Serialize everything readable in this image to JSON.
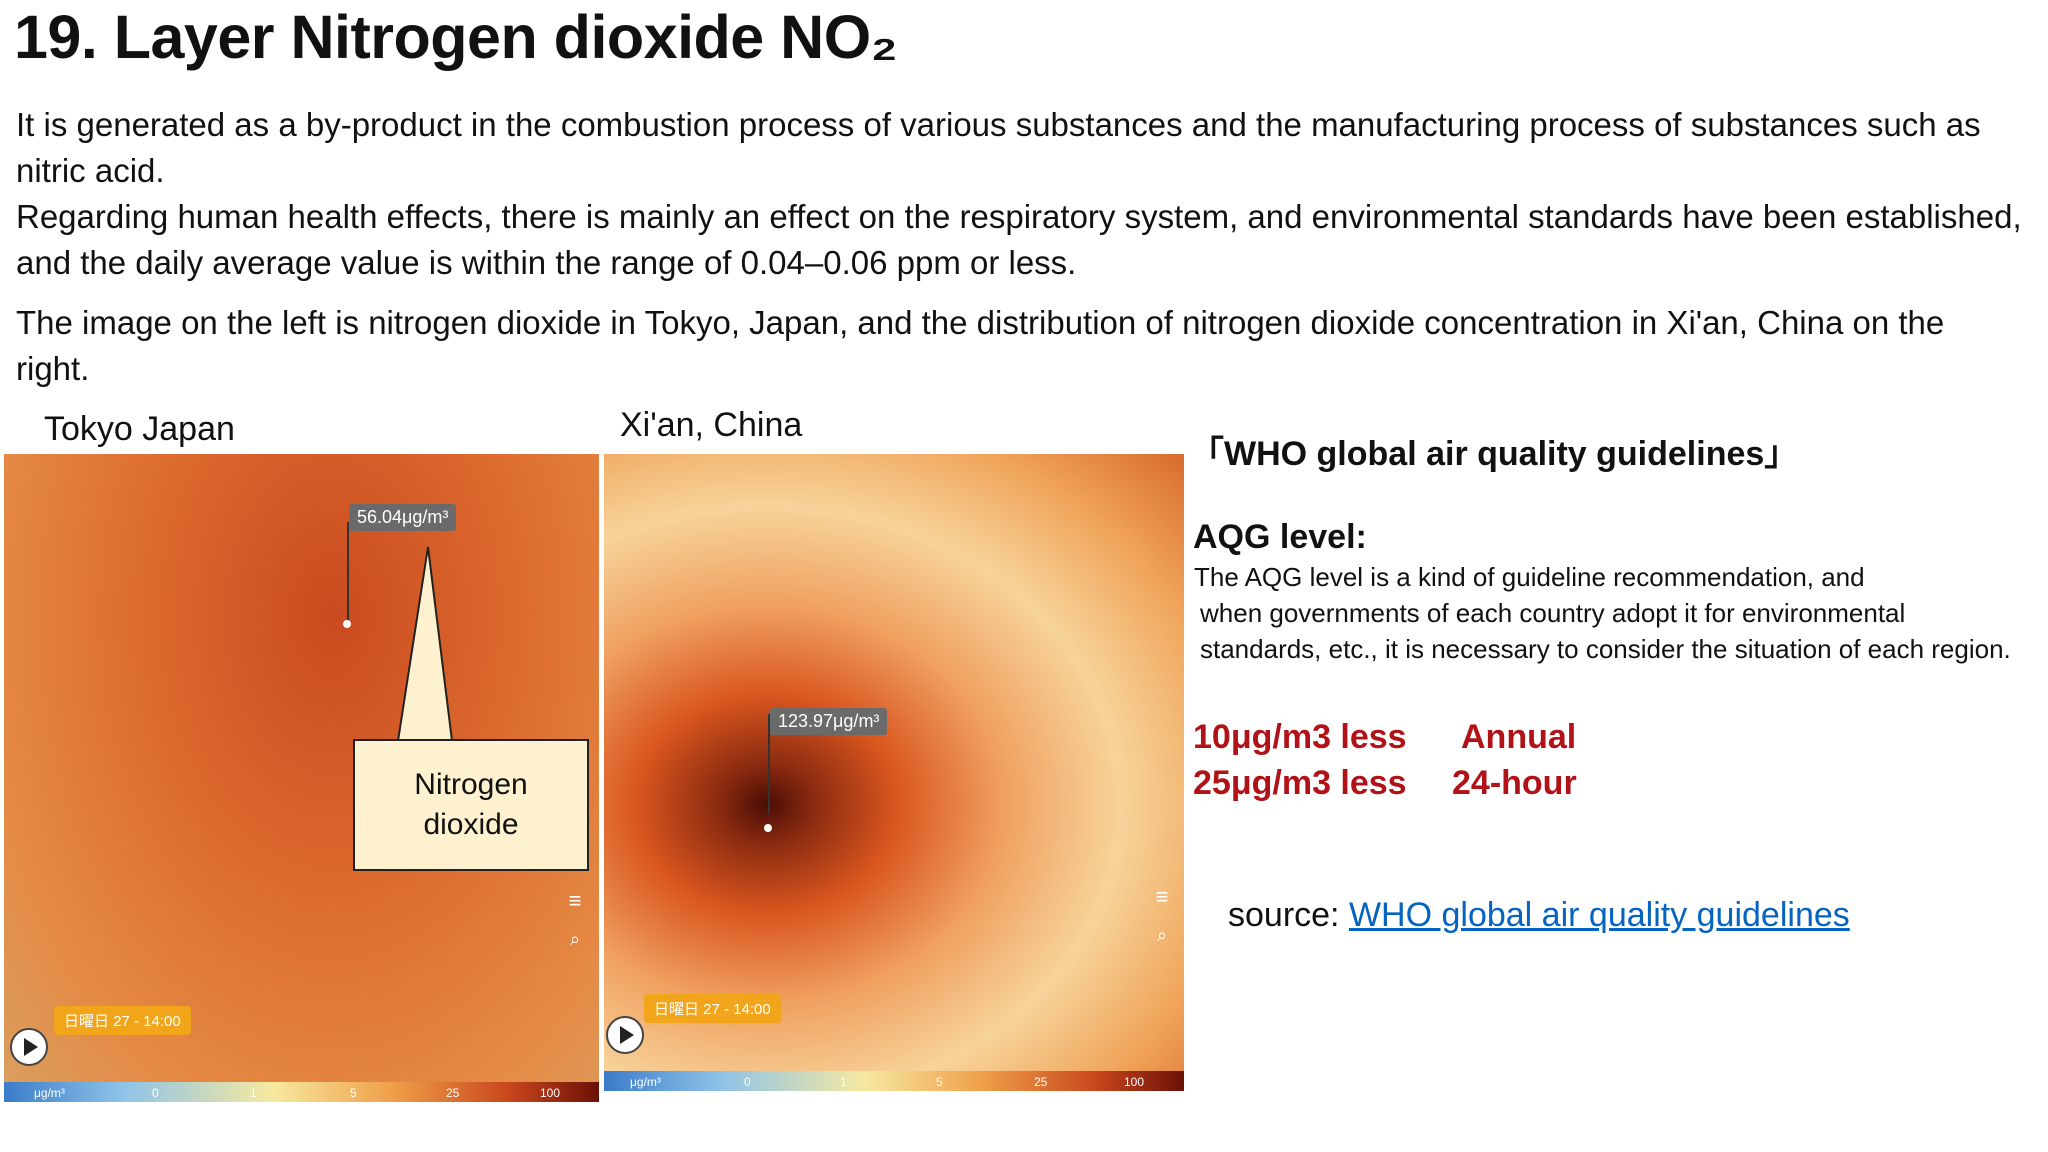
{
  "slide": {
    "title": "19. Layer Nitrogen dioxide  NO₂",
    "paragraph1": " It is generated as a by-product in the combustion process of various substances and the manufacturing process of substances such as nitric acid.",
    "paragraph2": "Regarding human health effects, there is mainly an effect on the respiratory system, and environmental standards have been established, and the daily average value is within the range of 0.04–0.06 ppm or less.",
    "paragraph3": "The image on the left is nitrogen dioxide in Tokyo, Japan, and the distribution of nitrogen dioxide concentration in Xi'an, China on the right."
  },
  "maps": {
    "tokyo": {
      "label": "Tokyo Japan",
      "reading": "56.04μg/m³",
      "date": "日曜日 27 - 14:00",
      "unit": "μg/m³",
      "scale": [
        "0",
        "1",
        "5",
        "25",
        "100"
      ]
    },
    "xian": {
      "label": "Xi'an, China",
      "reading": "123.97μg/m³",
      "date": "日曜日 27 - 14:00",
      "unit": "μg/m³",
      "scale": [
        "0",
        "1",
        "5",
        "25",
        "100"
      ]
    },
    "colors": {
      "low": "#3a7cc9",
      "mid": "#f6e9a0",
      "high": "#c8461c",
      "max": "#6b1008"
    }
  },
  "callout": {
    "text": "Nitrogen dioxide"
  },
  "who": {
    "heading": "「WHO global air quality guidelines」",
    "aqg_heading": "AQG level:",
    "aqg_lines": [
      "The AQG level is a kind of guideline recommendation, and",
      "when governments of each country adopt it for environmental",
      "standards, etc., it is necessary to consider the situation of each region."
    ],
    "guidelines": [
      {
        "value": "10μg/m3 less",
        "period": "Annual"
      },
      {
        "value": "25μg/m3 less",
        "period": "24-hour"
      }
    ],
    "accent_color": "#b01217",
    "source_prefix": "source: ",
    "source_link": "WHO global air quality guidelines"
  }
}
